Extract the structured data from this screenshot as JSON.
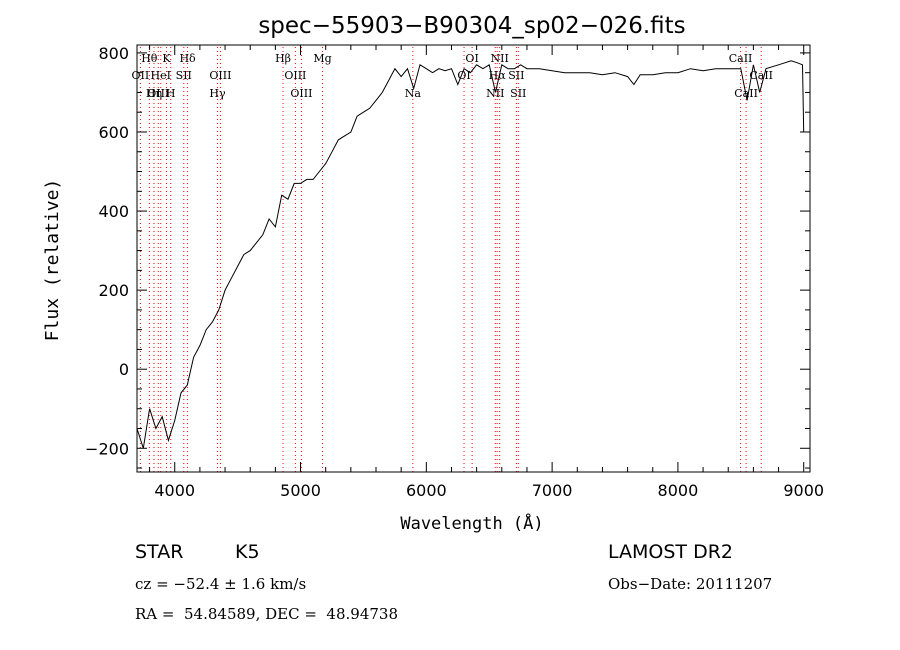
{
  "chart_data": {
    "type": "line",
    "title": "spec−55903−B90304_sp02−026.fits",
    "xlabel": "Wavelength (Å)",
    "ylabel": "Flux (relative)",
    "xlim": [
      3700,
      9050
    ],
    "ylim": [
      -260,
      820
    ],
    "x_ticks": [
      4000,
      5000,
      6000,
      7000,
      8000,
      9000
    ],
    "y_ticks": [
      -200,
      0,
      200,
      400,
      600,
      800
    ],
    "y_tick_labels": [
      "−200",
      "0",
      "200",
      "400",
      "600",
      "800"
    ],
    "grid": false,
    "line_color": "#000000",
    "marker_color": "#ff0000",
    "series": [
      {
        "x": [
          3700,
          3750,
          3800,
          3850,
          3900,
          3950,
          4000,
          4050,
          4100,
          4150,
          4200,
          4250,
          4300,
          4350,
          4400,
          4450,
          4500,
          4550,
          4600,
          4650,
          4700,
          4750,
          4800,
          4850,
          4900,
          4950,
          5000,
          5050,
          5100,
          5150,
          5200,
          5250,
          5300,
          5350,
          5400,
          5450,
          5500,
          5550,
          5600,
          5650,
          5700,
          5750,
          5800,
          5850,
          5900,
          5950,
          6000,
          6050,
          6100,
          6150,
          6200,
          6250,
          6300,
          6350,
          6400,
          6450,
          6500,
          6550,
          6600,
          6650,
          6700,
          6750,
          6800,
          6900,
          7000,
          7100,
          7200,
          7300,
          7400,
          7500,
          7600,
          7650,
          7700,
          7800,
          7900,
          8000,
          8100,
          8200,
          8300,
          8400,
          8500,
          8550,
          8600,
          8650,
          8700,
          8800,
          8900,
          8950,
          8990,
          9000
        ],
        "y": [
          -150,
          -200,
          -100,
          -150,
          -120,
          -180,
          -130,
          -60,
          -40,
          30,
          60,
          100,
          120,
          150,
          200,
          230,
          260,
          290,
          300,
          320,
          340,
          380,
          360,
          440,
          430,
          470,
          470,
          480,
          480,
          500,
          520,
          550,
          580,
          590,
          600,
          640,
          650,
          660,
          680,
          700,
          730,
          760,
          740,
          760,
          710,
          770,
          760,
          750,
          760,
          755,
          760,
          720,
          760,
          750,
          770,
          760,
          770,
          700,
          770,
          760,
          760,
          770,
          760,
          760,
          755,
          750,
          750,
          750,
          745,
          750,
          740,
          720,
          745,
          745,
          750,
          750,
          760,
          755,
          760,
          760,
          760,
          680,
          770,
          700,
          760,
          770,
          780,
          775,
          770,
          600
        ]
      }
    ],
    "lines": [
      {
        "label": "Hθ",
        "wave": 3798,
        "row": "top"
      },
      {
        "label": "OII",
        "wave": 3727,
        "row": "mid"
      },
      {
        "label": "OIII",
        "wave": 3869,
        "row": "low"
      },
      {
        "label": "K",
        "wave": 3934,
        "row": "top"
      },
      {
        "label": "HeI",
        "wave": 3889,
        "row": "mid"
      },
      {
        "label": "Hη",
        "wave": 3835,
        "row": "low"
      },
      {
        "label": "H",
        "wave": 3968,
        "row": "low"
      },
      {
        "label": "Hδ",
        "wave": 4102,
        "row": "top"
      },
      {
        "label": "SII",
        "wave": 4072,
        "row": "mid"
      },
      {
        "label": "OIII",
        "wave": 4363,
        "row": "mid"
      },
      {
        "label": "Hγ",
        "wave": 4340,
        "row": "low"
      },
      {
        "label": "Hβ",
        "wave": 4861,
        "row": "top"
      },
      {
        "label": "OIII",
        "wave": 4959,
        "row": "mid"
      },
      {
        "label": "OIII",
        "wave": 5007,
        "row": "low"
      },
      {
        "label": "Mg",
        "wave": 5175,
        "row": "top"
      },
      {
        "label": "Na",
        "wave": 5893,
        "row": "low"
      },
      {
        "label": "OI",
        "wave": 6364,
        "row": "top"
      },
      {
        "label": "OI",
        "wave": 6300,
        "row": "mid"
      },
      {
        "label": "NII",
        "wave": 6583,
        "row": "top"
      },
      {
        "label": "Hα",
        "wave": 6563,
        "row": "mid"
      },
      {
        "label": "SII",
        "wave": 6716,
        "row": "mid"
      },
      {
        "label": "NII",
        "wave": 6548,
        "row": "low"
      },
      {
        "label": "SII",
        "wave": 6731,
        "row": "low"
      },
      {
        "label": "CaII",
        "wave": 8498,
        "row": "top"
      },
      {
        "label": "CaII",
        "wave": 8662,
        "row": "mid"
      },
      {
        "label": "CaII",
        "wave": 8542,
        "row": "low"
      }
    ]
  },
  "info": {
    "object_class": "STAR",
    "subclass": "K5",
    "survey": "LAMOST DR2",
    "redshift": "cz = −52.4 ± 1.6 km/s",
    "obs_date": "Obs−Date: 20111207",
    "coords": "RA =  54.84589, DEC =  48.94738"
  }
}
